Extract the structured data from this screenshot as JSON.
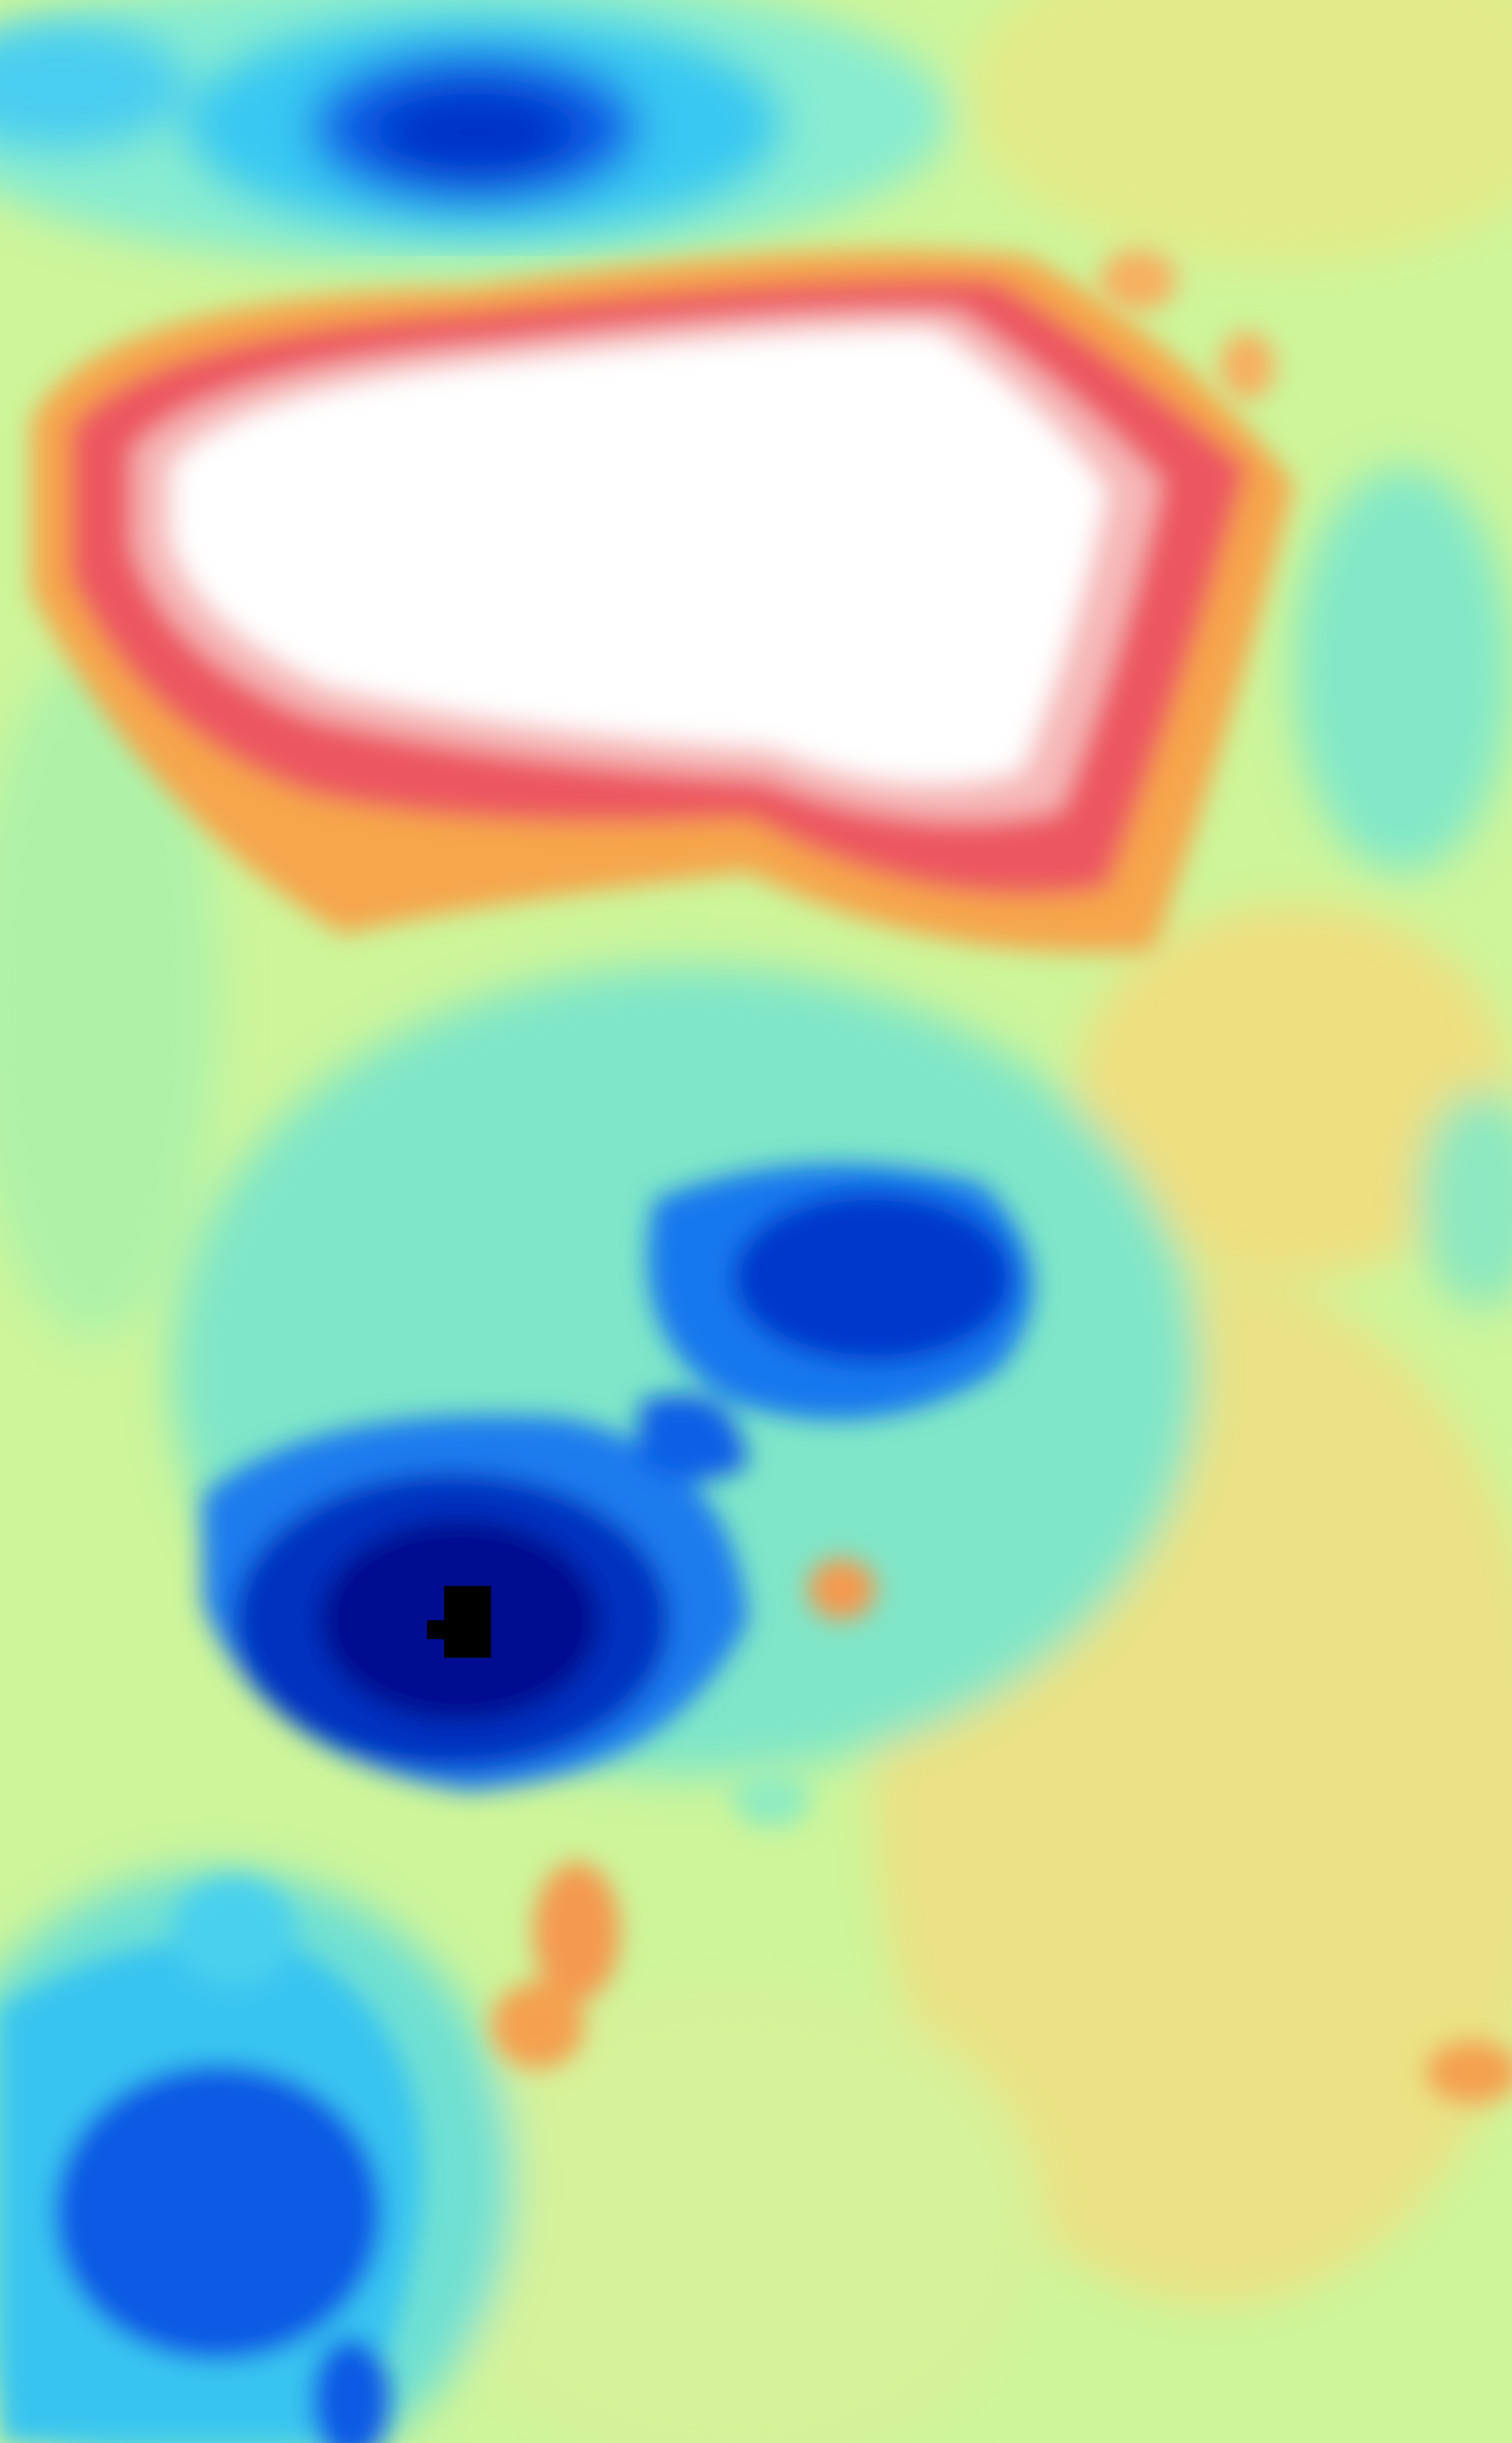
{
  "image": {
    "kind": "pixelated-heatmap",
    "colormap": "jet-like",
    "colors": {
      "background": "#cdf59a",
      "light_green": "#b2f0a0",
      "cyan_green": "#7ee8c0",
      "light_blue": "#38c8f2",
      "blue": "#1070ea",
      "deep_blue": "#0030c8",
      "navy": "#000a90",
      "black": "#000000",
      "yellow": "#e8e680",
      "orange": "#f7a84e",
      "red": "#ec5660",
      "white": "#ffffff"
    }
  }
}
